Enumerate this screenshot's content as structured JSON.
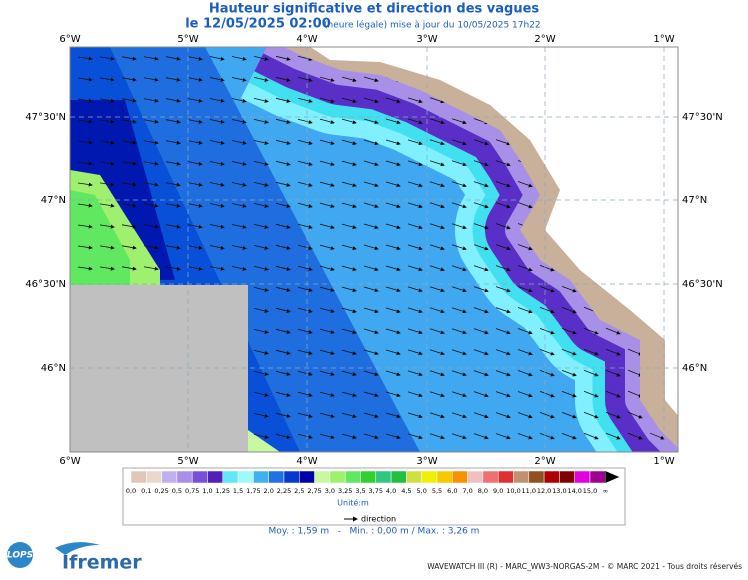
{
  "title": "Hauteur significative et direction des vagues",
  "date": "le 12/05/2025 02:00",
  "update": "(heure légale) mise à jour du 10/05/2025 17h22",
  "longitudes": [
    "6°W",
    "5°W",
    "4°W",
    "3°W",
    "2°W",
    "1°W"
  ],
  "latitudes": [
    "47°30'N",
    "47°N",
    "46°30'N",
    "46°N"
  ],
  "legend": {
    "labels": [
      "0,0",
      "0,1",
      "0,25",
      "0,5",
      "0,75",
      "1,0",
      "1,25",
      "1,5",
      "1,75",
      "2,0",
      "2,25",
      "2,5",
      "2,75",
      "3,0",
      "3,25",
      "3,5",
      "3,75",
      "4,0",
      "4,5",
      "5,0",
      "5,5",
      "6,0",
      "7,0",
      "8,0",
      "9,0",
      "10,0",
      "11,0",
      "12,0",
      "13,0",
      "14,0",
      "15,0",
      "∞"
    ],
    "colors": [
      "#e0c8b8",
      "#ead8cc",
      "#c0b0f0",
      "#a890e8",
      "#7850d8",
      "#5020b8",
      "#60e8f8",
      "#a0f8ff",
      "#40b0f0",
      "#2070e8",
      "#0838d0",
      "#0000a8",
      "#c8f8a0",
      "#a0f070",
      "#60e860",
      "#30d030",
      "#30c880",
      "#20c040",
      "#d0e040",
      "#f0f000",
      "#f8c800",
      "#f89000",
      "#f0c0c0",
      "#f07070",
      "#e03030",
      "#c09070",
      "#905020",
      "#b00000",
      "#800000",
      "#e000e0",
      "#a00090"
    ],
    "unit": "Unité:m",
    "direction": "direction",
    "stats": "Moy. : 1,59 m   -   Min. : 0,00 m / Max. : 3,26 m"
  },
  "logos": [
    "LOPS",
    "Ifremer"
  ],
  "footer": "WAVEWATCH III (R) - MARC_WW3-NORGAS-2M - © MARC 2021 - Tous droits réservés"
}
